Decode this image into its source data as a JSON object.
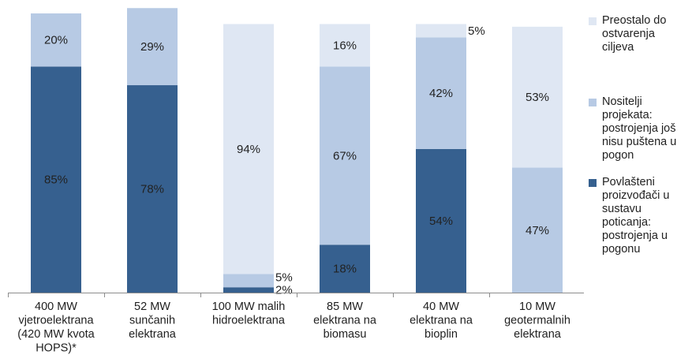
{
  "chart_data": {
    "type": "bar",
    "stacked": true,
    "categories": [
      "400 MW\nvjetroelektrana\n(420 MW kvota\nHOPS)*",
      "52 MW\nsunčanih\nelektrana",
      "100 MW malih\nhidroelektrana",
      "85 MW\nelektrana na\nbiomasu",
      "40 MW\nelektrana na\nbioplin",
      "10 MW\ngeotermalnih\nelektrana"
    ],
    "series": [
      {
        "name": "Povlašteni proizvođači u sustavu poticanja: postrojenja u pogonu",
        "values": [
          85,
          78,
          2,
          18,
          54,
          0
        ],
        "labels": [
          "85%",
          "78%",
          "2%",
          "18%",
          "54%",
          ""
        ],
        "color": "#36608f"
      },
      {
        "name": "Nositelji projekata: postrojenja još nisu puštena u pogon",
        "values": [
          20,
          29,
          5,
          67,
          42,
          47
        ],
        "labels": [
          "20%",
          "29%",
          "5%",
          "67%",
          "42%",
          "47%"
        ],
        "color": "#b7cae4"
      },
      {
        "name": "Preostalo do ostvarenja ciljeva",
        "values": [
          0,
          0,
          94,
          16,
          5,
          53
        ],
        "labels": [
          "",
          "",
          "94%",
          "16%",
          "5%",
          "53%"
        ],
        "color": "#dfe7f3"
      }
    ],
    "ylim": [
      0,
      105
    ],
    "grid": false,
    "legend": "right"
  },
  "legend": {
    "items": [
      {
        "text": "Preostalo do\nostvarenja\nciljeva",
        "color": "#dfe7f3"
      },
      {
        "text": "Nositelji\nprojekata:\npostrojenja još\nnisu puštena u\npogon",
        "color": "#b7cae4"
      },
      {
        "text": "Povlašteni\nproizvođači u\nsustavu\npoticanja:\npostrojenja u\npogonu",
        "color": "#36608f"
      }
    ]
  }
}
